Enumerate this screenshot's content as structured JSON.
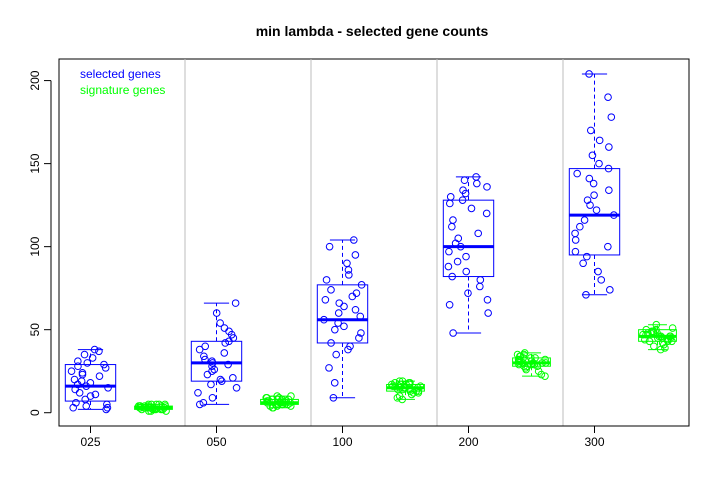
{
  "chart_data": {
    "type": "boxplot",
    "title": "min lambda - selected gene counts",
    "xlabel": "",
    "ylabel": "",
    "ylim": [
      -8,
      213
    ],
    "y_ticks": [
      0,
      50,
      100,
      150,
      200
    ],
    "categories": [
      "025",
      "050",
      "100",
      "200",
      "300"
    ],
    "grid": "vertical separators between groups",
    "legend": {
      "position": "top-left",
      "entries": [
        {
          "label": "selected genes",
          "color": "#0000ff"
        },
        {
          "label": "signature genes",
          "color": "#00ff00"
        }
      ]
    },
    "series": [
      {
        "name": "selected genes",
        "color": "#0000ff",
        "boxes": [
          {
            "category": "025",
            "min": 2,
            "q1": 7,
            "median": 16,
            "q3": 29,
            "max": 38
          },
          {
            "category": "050",
            "min": 5,
            "q1": 19,
            "median": 30,
            "q3": 43,
            "max": 66
          },
          {
            "category": "100",
            "min": 9,
            "q1": 42,
            "median": 56,
            "q3": 77,
            "max": 104
          },
          {
            "category": "200",
            "min": 48,
            "q1": 82,
            "median": 100,
            "q3": 128,
            "max": 142
          },
          {
            "category": "300",
            "min": 71,
            "q1": 95,
            "median": 119,
            "q3": 147,
            "max": 204
          }
        ],
        "points": [
          [
            2,
            3,
            3,
            4,
            5,
            6,
            8,
            10,
            11,
            12,
            14,
            15,
            16,
            17,
            18,
            19,
            20,
            22,
            23,
            24,
            25,
            27,
            28,
            29,
            30,
            31,
            33,
            35,
            37,
            38
          ],
          [
            5,
            6,
            9,
            12,
            15,
            17,
            19,
            20,
            21,
            23,
            25,
            26,
            28,
            29,
            30,
            31,
            32,
            34,
            36,
            38,
            40,
            42,
            43,
            45,
            47,
            49,
            51,
            54,
            60,
            66
          ],
          [
            9,
            18,
            27,
            35,
            38,
            40,
            42,
            45,
            48,
            50,
            52,
            54,
            56,
            58,
            60,
            62,
            64,
            66,
            68,
            70,
            72,
            74,
            77,
            80,
            83,
            86,
            90,
            95,
            100,
            104
          ],
          [
            48,
            60,
            65,
            68,
            72,
            76,
            80,
            82,
            85,
            88,
            91,
            94,
            97,
            100,
            102,
            105,
            108,
            112,
            116,
            120,
            123,
            126,
            128,
            130,
            132,
            134,
            136,
            138,
            140,
            142
          ],
          [
            71,
            74,
            80,
            85,
            90,
            94,
            97,
            100,
            104,
            108,
            112,
            116,
            119,
            122,
            125,
            128,
            131,
            134,
            138,
            141,
            144,
            147,
            150,
            155,
            160,
            164,
            170,
            178,
            190,
            204
          ]
        ]
      },
      {
        "name": "signature genes",
        "color": "#00ff00",
        "boxes": [
          {
            "category": "025",
            "min": 1,
            "q1": 2,
            "median": 3,
            "q3": 4,
            "max": 5
          },
          {
            "category": "050",
            "min": 3,
            "q1": 5,
            "median": 6,
            "q3": 8,
            "max": 10
          },
          {
            "category": "100",
            "min": 8,
            "q1": 13,
            "median": 15,
            "q3": 17,
            "max": 19
          },
          {
            "category": "200",
            "min": 22,
            "q1": 28,
            "median": 30,
            "q3": 33,
            "max": 36
          },
          {
            "category": "300",
            "min": 38,
            "q1": 43,
            "median": 46,
            "q3": 50,
            "max": 53
          }
        ],
        "points": [
          [
            1,
            1,
            1,
            2,
            2,
            2,
            2,
            2,
            2,
            3,
            3,
            3,
            3,
            3,
            3,
            3,
            3,
            3,
            4,
            4,
            4,
            4,
            4,
            4,
            4,
            5,
            5,
            5,
            5,
            5
          ],
          [
            3,
            3,
            4,
            4,
            4,
            5,
            5,
            5,
            5,
            5,
            6,
            6,
            6,
            6,
            6,
            6,
            7,
            7,
            7,
            7,
            7,
            8,
            8,
            8,
            8,
            9,
            9,
            9,
            10,
            10
          ],
          [
            8,
            9,
            10,
            11,
            12,
            12,
            13,
            13,
            13,
            14,
            14,
            14,
            15,
            15,
            15,
            15,
            15,
            16,
            16,
            16,
            16,
            17,
            17,
            17,
            17,
            18,
            18,
            18,
            19,
            19
          ],
          [
            22,
            23,
            25,
            26,
            27,
            28,
            28,
            28,
            29,
            29,
            29,
            30,
            30,
            30,
            30,
            30,
            31,
            31,
            31,
            32,
            32,
            32,
            33,
            33,
            33,
            34,
            34,
            35,
            35,
            36
          ],
          [
            38,
            39,
            40,
            41,
            42,
            43,
            43,
            43,
            44,
            44,
            44,
            45,
            45,
            45,
            46,
            46,
            46,
            46,
            47,
            47,
            47,
            48,
            48,
            48,
            49,
            49,
            50,
            50,
            51,
            53
          ]
        ]
      }
    ]
  }
}
